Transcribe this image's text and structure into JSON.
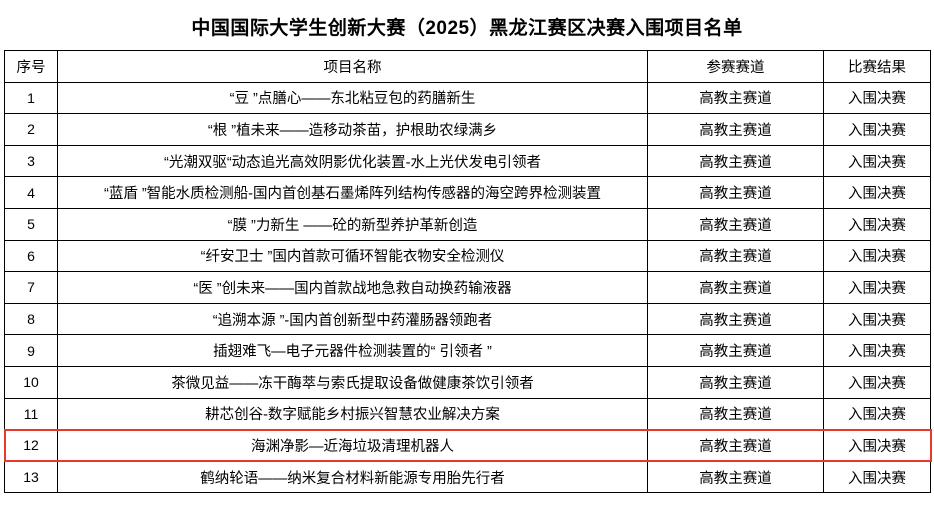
{
  "page": {
    "title": "中国国际大学生创新大赛（2025）黑龙江赛区决赛入围项目名单"
  },
  "table": {
    "headers": [
      "序号",
      "项目名称",
      "参赛赛道",
      "比赛结果"
    ],
    "rows": [
      {
        "no": "1",
        "name": "“豆 ”点膳心——东北粘豆包的药膳新生",
        "track": "高教主赛道",
        "result": "入围决赛",
        "highlighted": false
      },
      {
        "no": "2",
        "name": "“根 ”植未来——造移动茶苗，护根助农绿满乡",
        "track": "高教主赛道",
        "result": "入围决赛",
        "highlighted": false
      },
      {
        "no": "3",
        "name": "“光潮双驱“动态追光高效阴影优化装置-水上光伏发电引领者",
        "track": "高教主赛道",
        "result": "入围决赛",
        "highlighted": false
      },
      {
        "no": "4",
        "name": "“蓝盾 ”智能水质检测船-国内首创基石墨烯阵列结构传感器的海空跨界检测装置",
        "track": "高教主赛道",
        "result": "入围决赛",
        "highlighted": false
      },
      {
        "no": "5",
        "name": "“膜 ”力新生 ——砼的新型养护革新创造",
        "track": "高教主赛道",
        "result": "入围决赛",
        "highlighted": false
      },
      {
        "no": "6",
        "name": "“纤安卫士 ”国内首款可循环智能衣物安全检测仪",
        "track": "高教主赛道",
        "result": "入围决赛",
        "highlighted": false
      },
      {
        "no": "7",
        "name": "“医 ”创未来——国内首款战地急救自动换药输液器",
        "track": "高教主赛道",
        "result": "入围决赛",
        "highlighted": false
      },
      {
        "no": "8",
        "name": "“追溯本源 ”-国内首创新型中药灌肠器领跑者",
        "track": "高教主赛道",
        "result": "入围决赛",
        "highlighted": false
      },
      {
        "no": "9",
        "name": "插翅难飞—电子元器件检测装置的“ 引领者 ”",
        "track": "高教主赛道",
        "result": "入围决赛",
        "highlighted": false
      },
      {
        "no": "10",
        "name": "茶微见益——冻干酶萃与索氏提取设备做健康茶饮引领者",
        "track": "高教主赛道",
        "result": "入围决赛",
        "highlighted": false
      },
      {
        "no": "11",
        "name": "耕芯创谷-数字赋能乡村振兴智慧农业解决方案",
        "track": "高教主赛道",
        "result": "入围决赛",
        "highlighted": false
      },
      {
        "no": "12",
        "name": "海渊净影—近海垃圾清理机器人",
        "track": "高教主赛道",
        "result": "入围决赛",
        "highlighted": true
      },
      {
        "no": "13",
        "name": "鹤纳轮语——纳米复合材料新能源专用胎先行者",
        "track": "高教主赛道",
        "result": "入围决赛",
        "highlighted": false
      }
    ]
  },
  "colors": {
    "highlight_border": "#e8392b",
    "table_border": "#000000",
    "text": "#000000",
    "background": "#ffffff"
  }
}
